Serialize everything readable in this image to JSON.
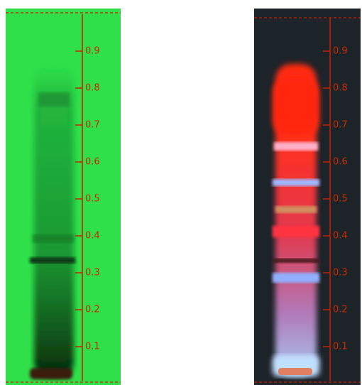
{
  "plates": [
    {
      "ticks": [
        0.1,
        0.2,
        0.3,
        0.4,
        0.5,
        0.6,
        0.7,
        0.8,
        0.9
      ]
    },
    {
      "ticks": [
        0.1,
        0.2,
        0.3,
        0.4,
        0.5,
        0.6,
        0.7,
        0.8,
        0.9
      ]
    }
  ]
}
